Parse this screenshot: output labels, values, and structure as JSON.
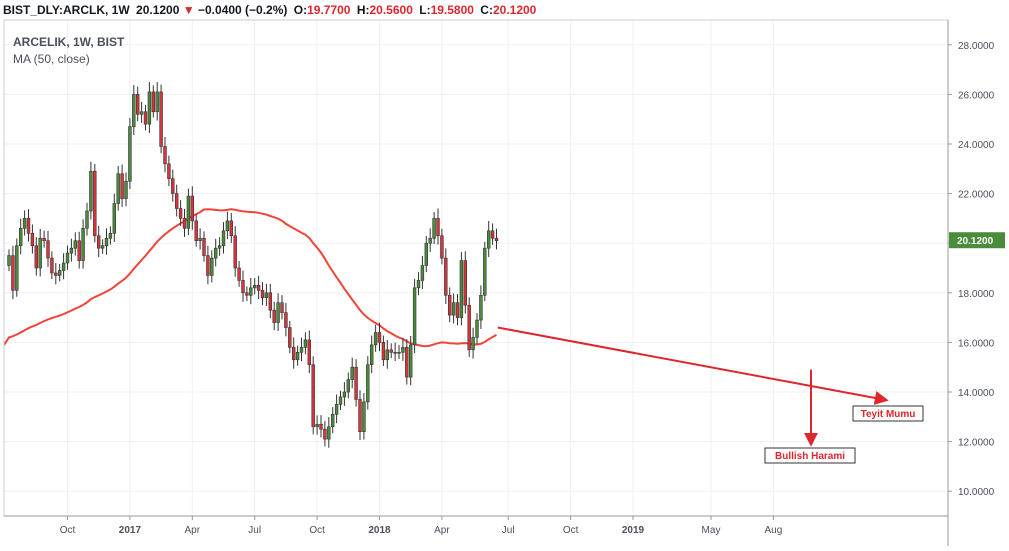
{
  "header": {
    "symbol": "BIST_DLY:ARCLK, 1W",
    "last": "20.1200",
    "change": "−0.0400 (−0.2%)",
    "o_label": "O:",
    "o": "19.7700",
    "h_label": "H:",
    "h": "20.5600",
    "l_label": "L:",
    "l": "19.5800",
    "c_label": "C:",
    "c": "20.1200"
  },
  "legend": {
    "symbol": "ARCELIK, 1W, BIST",
    "indicator": "MA (50, close)"
  },
  "colors": {
    "up": "#4a8c3a",
    "down": "#d9333b",
    "ma": "#ef4438",
    "annotation": "#e0262d",
    "price_label_bg": "#4a8c3a"
  },
  "chart_data": {
    "type": "candlestick",
    "ylim": [
      9.0,
      29.0
    ],
    "y_ticks": [
      "10.0000",
      "12.0000",
      "14.0000",
      "16.0000",
      "18.0000",
      "20.0000",
      "22.0000",
      "24.0000",
      "26.0000",
      "28.0000"
    ],
    "x_ticks": [
      {
        "label": "Oct",
        "i": 15
      },
      {
        "label": "2017",
        "i": 31
      },
      {
        "label": "Apr",
        "i": 47
      },
      {
        "label": "Jul",
        "i": 63
      },
      {
        "label": "Oct",
        "i": 79
      },
      {
        "label": "2018",
        "i": 95
      },
      {
        "label": "Apr",
        "i": 111
      },
      {
        "label": "Jul",
        "i": 128
      },
      {
        "label": "Oct",
        "i": 144
      },
      {
        "label": "2019",
        "i": 160
      },
      {
        "label": "May",
        "i": 180
      },
      {
        "label": "Aug",
        "i": 196
      }
    ],
    "last_price": "20.1200",
    "closes": [
      19.5,
      18.1,
      19.9,
      20.6,
      21.0,
      20.4,
      19.9,
      19.0,
      20.2,
      20.1,
      19.4,
      18.8,
      18.7,
      18.9,
      19.2,
      19.6,
      19.8,
      20.1,
      19.3,
      20.6,
      21.3,
      22.9,
      20.3,
      19.8,
      19.9,
      20.2,
      20.4,
      21.6,
      22.8,
      21.8,
      22.5,
      24.7,
      26.0,
      25.2,
      25.3,
      24.8,
      26.1,
      25.3,
      26.1,
      23.9,
      23.2,
      22.6,
      22.0,
      21.4,
      21.0,
      20.6,
      21.9,
      20.9,
      20.1,
      20.2,
      19.5,
      18.7,
      19.4,
      19.8,
      19.9,
      20.5,
      20.9,
      20.3,
      19.0,
      18.5,
      18.0,
      17.9,
      18.2,
      18.3,
      18.1,
      17.8,
      18.0,
      17.3,
      16.8,
      17.6,
      17.2,
      16.6,
      15.8,
      15.3,
      15.6,
      15.8,
      16.1,
      15.1,
      12.6,
      12.7,
      12.5,
      12.1,
      12.6,
      13.1,
      13.5,
      13.8,
      14.0,
      14.5,
      15.0,
      13.7,
      12.4,
      13.6,
      15.1,
      15.9,
      16.4,
      16.0,
      15.3,
      15.7,
      15.6,
      15.6,
      15.6,
      15.8,
      14.6,
      15.9,
      18.2,
      18.5,
      19.1,
      20.0,
      20.2,
      21.0,
      20.3,
      19.4,
      17.9,
      17.1,
      17.6,
      17.0,
      19.3,
      17.5,
      15.7,
      16.2,
      16.9,
      17.9,
      19.8,
      20.5,
      20.2,
      20.1
    ],
    "ma_label": "MA (50, close)",
    "annotations": [
      {
        "text": "Teyit Mumu"
      },
      {
        "text": "Bullish Harami"
      }
    ]
  }
}
